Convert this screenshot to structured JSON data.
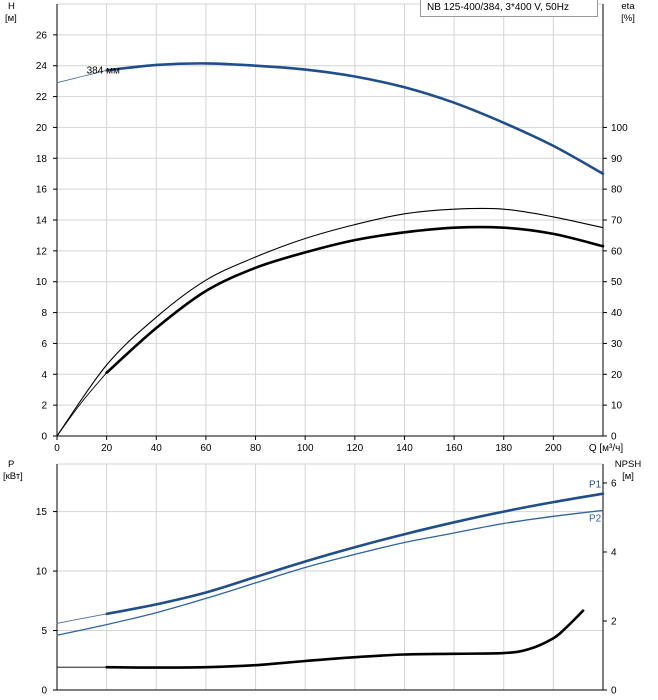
{
  "title": "NB 125-400/384, 3*400 V, 50Hz",
  "chart_data": [
    {
      "type": "line",
      "panel": "top",
      "xlabel": "Q [м³/ч]",
      "xlim": [
        0,
        220
      ],
      "xticks": [
        0,
        20,
        40,
        60,
        80,
        100,
        120,
        140,
        160,
        180,
        200
      ],
      "ylabel_left": [
        "H",
        "[м]"
      ],
      "ylim_left": [
        0,
        28
      ],
      "yticks_left": [
        0,
        2,
        4,
        6,
        8,
        10,
        12,
        14,
        16,
        18,
        20,
        22,
        24,
        26
      ],
      "ylabel_right": [
        "eta",
        "[%]"
      ],
      "ylim_right": [
        0,
        140
      ],
      "yticks_right": [
        0,
        10,
        20,
        30,
        40,
        50,
        60,
        70,
        80,
        90,
        100
      ],
      "annotations": [
        {
          "text": "384 мм",
          "series": "H"
        }
      ],
      "series": [
        {
          "name": "H",
          "axis": "left",
          "color": "#1f4e8c",
          "width": 2.6,
          "domain": [
            20,
            220
          ],
          "x": [
            20,
            40,
            60,
            80,
            100,
            120,
            140,
            160,
            180,
            200,
            220
          ],
          "y": [
            23.7,
            24.05,
            24.15,
            24.0,
            23.75,
            23.3,
            22.6,
            21.6,
            20.3,
            18.8,
            17.0
          ]
        },
        {
          "name": "H thin",
          "axis": "left",
          "color": "#4a6fa0",
          "width": 0.9,
          "domain": [
            0,
            20
          ],
          "x": [
            0,
            10,
            20
          ],
          "y": [
            22.9,
            23.3,
            23.7
          ]
        },
        {
          "name": "eta",
          "axis": "right",
          "color": "#000000",
          "width": 2.6,
          "domain": [
            20,
            220
          ],
          "x": [
            20,
            40,
            60,
            80,
            100,
            120,
            140,
            160,
            180,
            200,
            220
          ],
          "y": [
            20.5,
            35,
            47,
            54.5,
            59.5,
            63.5,
            66,
            67.5,
            67.5,
            65.5,
            61.5
          ]
        },
        {
          "name": "eta thin",
          "axis": "right",
          "color": "#000000",
          "width": 0.9,
          "domain": [
            0,
            20
          ],
          "x": [
            0,
            10,
            20
          ],
          "y": [
            0,
            11,
            20.5
          ]
        },
        {
          "name": "eta upper",
          "axis": "right",
          "color": "#000000",
          "width": 1.1,
          "domain": [
            0,
            220
          ],
          "x": [
            0,
            20,
            40,
            60,
            80,
            100,
            120,
            140,
            160,
            180,
            200,
            220
          ],
          "y": [
            0,
            23,
            38.5,
            50.5,
            58,
            64,
            68.5,
            72,
            73.5,
            73.5,
            71,
            67.5
          ]
        }
      ]
    },
    {
      "type": "line",
      "panel": "bottom",
      "xlim": [
        0,
        220
      ],
      "ylabel_left": [
        "P",
        "[кВт]"
      ],
      "ylim_left": [
        0,
        19
      ],
      "yticks_left": [
        0,
        5,
        10,
        15
      ],
      "ylabel_right": [
        "NPSH",
        "[м]"
      ],
      "ylim_right": [
        0,
        6.55
      ],
      "yticks_right": [
        0,
        2,
        4,
        6
      ],
      "series": [
        {
          "name": "P1",
          "axis": "left",
          "color": "#1f4e8c",
          "width": 2.6,
          "domain": [
            20,
            220
          ],
          "x": [
            20,
            40,
            60,
            80,
            100,
            120,
            140,
            160,
            180,
            200,
            220
          ],
          "y": [
            6.4,
            7.2,
            8.2,
            9.5,
            10.8,
            12.0,
            13.1,
            14.1,
            15.0,
            15.8,
            16.5
          ]
        },
        {
          "name": "P1 thin",
          "axis": "left",
          "color": "#4a6fa0",
          "width": 0.9,
          "domain": [
            0,
            20
          ],
          "x": [
            0,
            10,
            20
          ],
          "y": [
            5.6,
            6.0,
            6.4
          ]
        },
        {
          "name": "P2",
          "axis": "left",
          "color": "#2c62a8",
          "width": 1.3,
          "domain": [
            0,
            220
          ],
          "x": [
            0,
            20,
            40,
            60,
            80,
            100,
            120,
            140,
            160,
            180,
            200,
            220
          ],
          "y": [
            4.6,
            5.5,
            6.5,
            7.7,
            9.0,
            10.3,
            11.4,
            12.4,
            13.2,
            14.0,
            14.6,
            15.1
          ]
        },
        {
          "name": "NPSH",
          "axis": "right",
          "color": "#000000",
          "width": 2.6,
          "domain": [
            20,
            212
          ],
          "x": [
            20,
            40,
            60,
            80,
            100,
            120,
            140,
            160,
            180,
            190,
            200,
            205,
            212
          ],
          "y": [
            0.66,
            0.65,
            0.66,
            0.72,
            0.84,
            0.95,
            1.03,
            1.05,
            1.07,
            1.18,
            1.5,
            1.8,
            2.3
          ]
        },
        {
          "name": "NPSH thin",
          "axis": "right",
          "color": "#000000",
          "width": 0.9,
          "domain": [
            0,
            20
          ],
          "x": [
            0,
            20
          ],
          "y": [
            0.66,
            0.66
          ]
        }
      ],
      "series_labels": [
        {
          "text": "P1",
          "series": "P1"
        },
        {
          "text": "P2",
          "series": "P2"
        }
      ]
    }
  ]
}
